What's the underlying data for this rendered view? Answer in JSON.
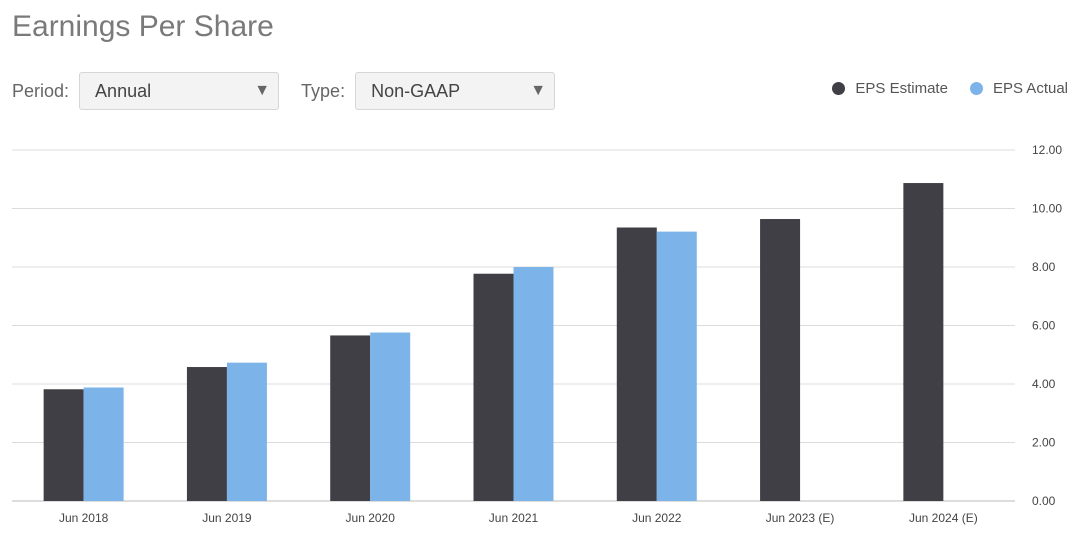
{
  "header": {
    "title": "Earnings Per Share"
  },
  "controls": {
    "period_label": "Period:",
    "period_value": "Annual",
    "type_label": "Type:",
    "type_value": "Non-GAAP"
  },
  "colors": {
    "estimate": "#3f3f45",
    "actual": "#7cb4ea",
    "grid": "#dcdcdc"
  },
  "chart_data": {
    "type": "bar",
    "title": "Earnings Per Share",
    "categories": [
      "Jun 2018",
      "Jun 2019",
      "Jun 2020",
      "Jun 2021",
      "Jun 2022",
      "Jun 2023 (E)",
      "Jun 2024 (E)"
    ],
    "series": [
      {
        "name": "EPS Estimate",
        "values": [
          3.82,
          4.58,
          5.66,
          7.77,
          9.35,
          9.64,
          10.87
        ]
      },
      {
        "name": "EPS Actual",
        "values": [
          3.88,
          4.73,
          5.76,
          8.0,
          9.21,
          null,
          null
        ]
      }
    ],
    "ylim": [
      0,
      12
    ],
    "yticks": [
      "0.00",
      "2.00",
      "4.00",
      "6.00",
      "8.00",
      "10.00",
      "12.00"
    ],
    "y_axis_side": "right",
    "grid": true,
    "legend": "top-right"
  }
}
